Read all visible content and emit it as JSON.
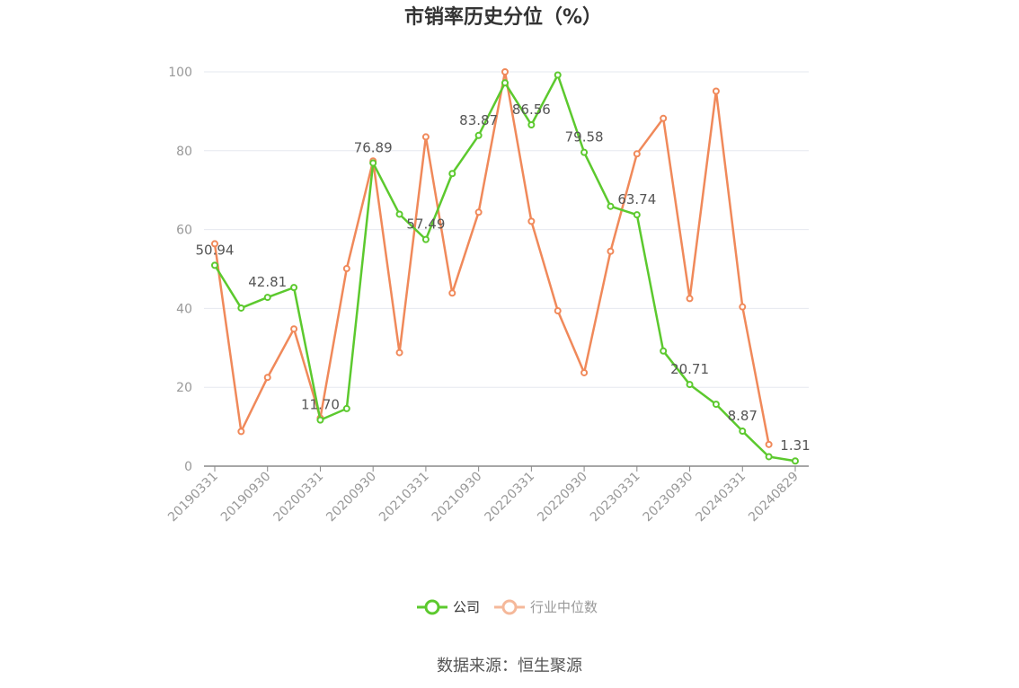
{
  "chart_data": {
    "type": "line",
    "title": "市销率历史分位（%）",
    "x": [
      "20190331",
      "20190630",
      "20190930",
      "20191231",
      "20200331",
      "20200630",
      "20200930",
      "20201231",
      "20210331",
      "20210630",
      "20210930",
      "20211231",
      "20220331",
      "20220630",
      "20220930",
      "20221231",
      "20230331",
      "20230630",
      "20230930",
      "20231231",
      "20240331",
      "20240630",
      "20240829"
    ],
    "x_tick_labels": [
      "20190331",
      "20190930",
      "20200331",
      "20200930",
      "20210331",
      "20210930",
      "20220331",
      "20220930",
      "20230331",
      "20230930",
      "20240331",
      "20240829"
    ],
    "ylim": [
      0,
      100
    ],
    "yticks": [
      "0",
      "20",
      "40",
      "60",
      "80",
      "100"
    ],
    "grid": true,
    "legend_position": "bottom-center",
    "series": [
      {
        "name": "公司",
        "color": "#5cc92e",
        "values": [
          50.94,
          40.1,
          42.81,
          45.3,
          11.7,
          14.6,
          76.89,
          63.9,
          57.49,
          74.2,
          83.87,
          97.2,
          86.56,
          99.2,
          79.58,
          65.9,
          63.74,
          29.2,
          20.71,
          15.7,
          8.87,
          2.4,
          1.31
        ],
        "labels": [
          "50.94",
          "",
          "42.81",
          "",
          "11.70",
          "",
          "76.89",
          "",
          "57.49",
          "",
          "83.87",
          "",
          "86.56",
          "",
          "79.58",
          "",
          "63.74",
          "",
          "20.71",
          "",
          "8.87",
          "",
          "1.31"
        ]
      },
      {
        "name": "行业中位数",
        "color": "#f0895a",
        "values": [
          56.4,
          8.8,
          22.5,
          34.8,
          12.2,
          50.1,
          77.4,
          28.8,
          83.5,
          43.9,
          64.4,
          100.0,
          62.1,
          39.4,
          23.7,
          54.5,
          79.2,
          88.2,
          42.5,
          95.1,
          40.4,
          5.5,
          null
        ]
      }
    ]
  },
  "source_text": "数据来源：恒生聚源"
}
